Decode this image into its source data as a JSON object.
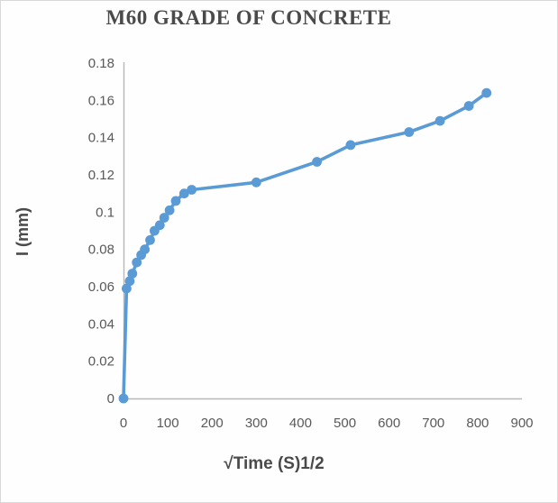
{
  "chart_data": {
    "type": "line",
    "title": "M60 GRADE OF CONCRETE",
    "xlabel": "√Time (S)1/2",
    "ylabel": "I (mm)",
    "xlim": [
      0,
      900
    ],
    "ylim": [
      0,
      0.18
    ],
    "x_ticks": [
      0,
      100,
      200,
      300,
      400,
      500,
      600,
      700,
      800,
      900
    ],
    "y_ticks": [
      0,
      0.02,
      0.04,
      0.06,
      0.08,
      0.1,
      0.12,
      0.14,
      0.16,
      0.18
    ],
    "y_tick_labels": [
      "0",
      "0.02",
      "0.04",
      "0.06",
      "0.08",
      "0.1",
      "0.12",
      "0.14",
      "0.16",
      "0.18"
    ],
    "grid": false,
    "legend": "none",
    "series": [
      {
        "name": "M60",
        "color": "#5b9bd5",
        "marker": "circle",
        "points": [
          [
            0,
            0
          ],
          [
            7,
            0.059
          ],
          [
            14,
            0.063
          ],
          [
            20,
            0.067
          ],
          [
            30,
            0.073
          ],
          [
            40,
            0.077
          ],
          [
            48,
            0.08
          ],
          [
            60,
            0.085
          ],
          [
            70,
            0.09
          ],
          [
            82,
            0.093
          ],
          [
            92,
            0.097
          ],
          [
            104,
            0.101
          ],
          [
            118,
            0.106
          ],
          [
            137,
            0.11
          ],
          [
            154,
            0.112
          ],
          [
            300,
            0.116
          ],
          [
            437,
            0.127
          ],
          [
            513,
            0.136
          ],
          [
            645,
            0.143
          ],
          [
            715,
            0.149
          ],
          [
            780,
            0.157
          ],
          [
            820,
            0.164
          ]
        ]
      }
    ]
  },
  "colors": {
    "series_blue": "#5b9bd5",
    "axis_line": "#b7b7b7",
    "tick_text": "#595959",
    "title_text": "#4a4a4a",
    "frame_border": "#d9d9d9",
    "background": "#fefefe"
  }
}
